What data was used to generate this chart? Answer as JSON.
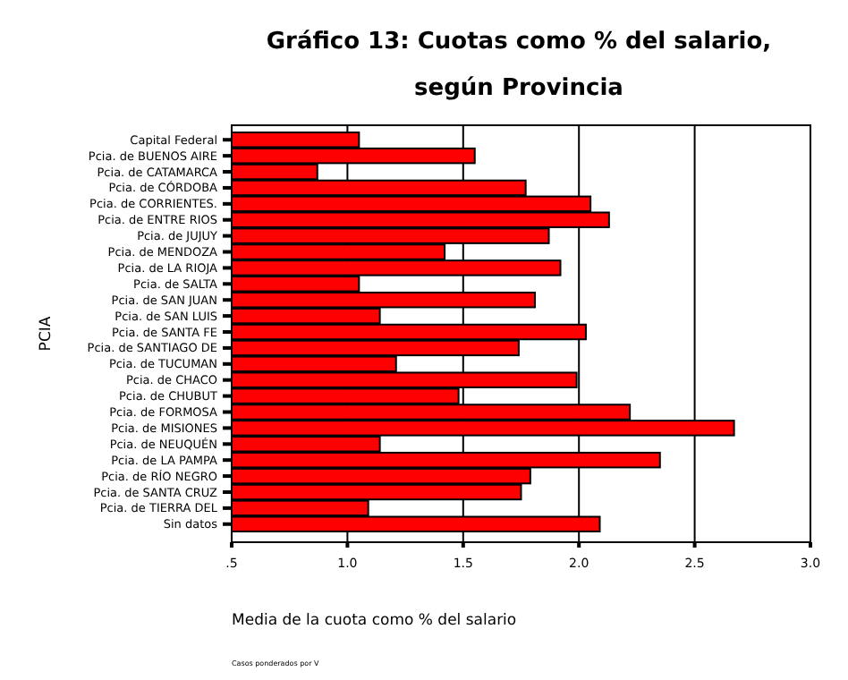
{
  "chart_data": {
    "type": "bar",
    "orientation": "horizontal",
    "title": "Gráfico 13: Cuotas como % del salario,",
    "subtitle": "según Provincia",
    "xlabel": "Media de la cuota como % del salario",
    "ylabel": "PCIA",
    "categories": [
      "Capital Federal",
      "Pcia. de BUENOS AIRE",
      "Pcia. de CATAMARCA",
      "Pcia. de CÓRDOBA",
      "Pcia. de CORRIENTES.",
      "Pcia. de ENTRE RIOS",
      "Pcia. de JUJUY",
      "Pcia. de MENDOZA",
      "Pcia. de LA RIOJA",
      "Pcia. de SALTA",
      "Pcia. de SAN JUAN",
      "Pcia. de SAN LUIS",
      "Pcia. de SANTA FE",
      "Pcia. de SANTIAGO DE",
      "Pcia. de TUCUMAN",
      "Pcia. de CHACO",
      "Pcia. de CHUBUT",
      "Pcia. de FORMOSA",
      "Pcia. de MISIONES",
      "Pcia. de NEUQUÉN",
      "Pcia. de LA PAMPA",
      "Pcia. de RÍO NEGRO",
      "Pcia. de SANTA CRUZ",
      "Pcia. de TIERRA DEL",
      "Sin datos"
    ],
    "values": [
      1.05,
      1.55,
      0.87,
      1.77,
      2.05,
      2.13,
      1.87,
      1.42,
      1.92,
      1.05,
      1.81,
      1.14,
      2.03,
      1.74,
      1.21,
      1.99,
      1.48,
      2.22,
      2.67,
      1.14,
      2.35,
      1.79,
      1.75,
      1.09,
      2.09
    ],
    "color": "#ff0000",
    "xlim": [
      0.5,
      3.0
    ],
    "xticks": [
      {
        "value": 0.5,
        "label": ".5"
      },
      {
        "value": 1.0,
        "label": "1.0"
      },
      {
        "value": 1.5,
        "label": "1.5"
      },
      {
        "value": 2.0,
        "label": "2.0"
      },
      {
        "value": 2.5,
        "label": "2.5"
      },
      {
        "value": 3.0,
        "label": "3.0"
      }
    ],
    "grid": "x",
    "annotations": [
      "Casos ponderados por V"
    ]
  }
}
